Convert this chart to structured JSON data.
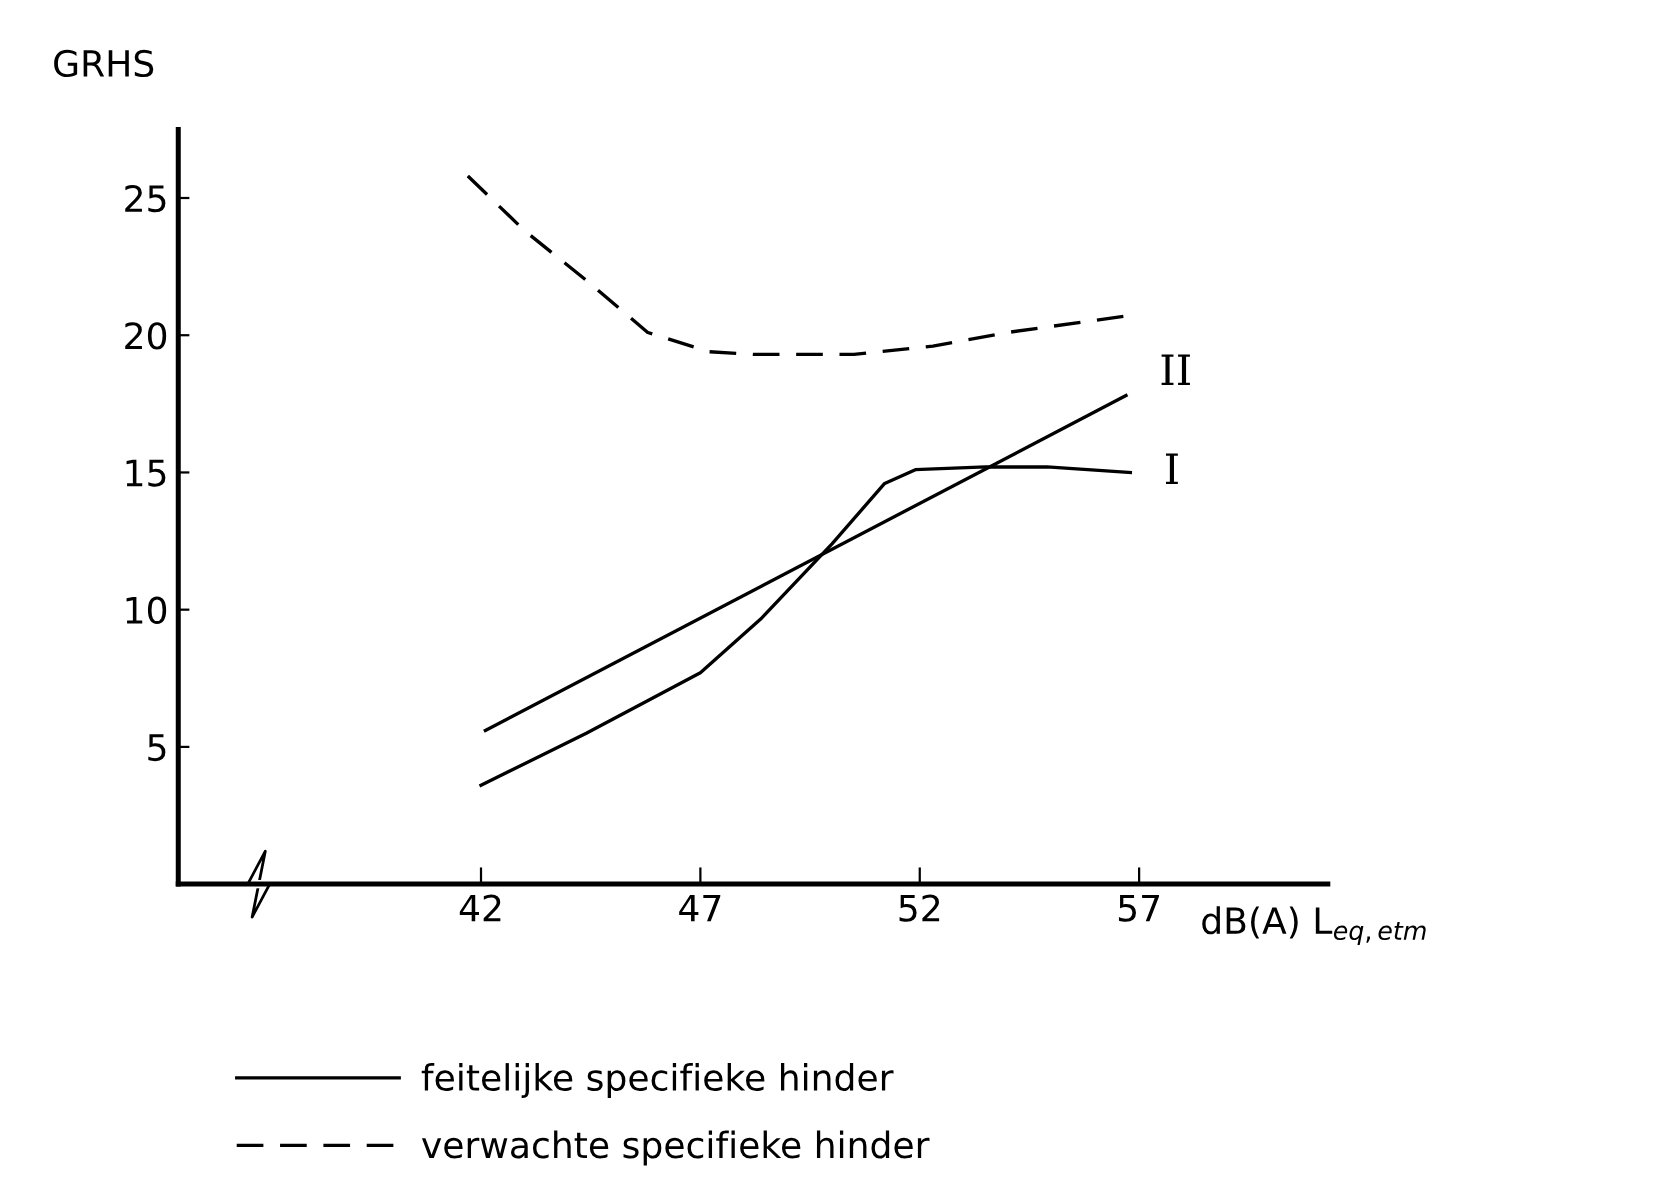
{
  "chart_data": {
    "type": "line",
    "ylabel": "GRHS",
    "xlabel": "dB(A) L$_{eq,etm}$",
    "xlim": [
      35.1,
      61.3
    ],
    "xticks": [
      42,
      47,
      52,
      57
    ],
    "ylim": [
      0,
      27.5
    ],
    "yticks": [
      5,
      10,
      15,
      20,
      25
    ],
    "grid": false,
    "legend": "bottom",
    "marker": "none",
    "series": [
      {
        "name": "feitelijke specifieke hinder",
        "color": "#000000",
        "line_style": "solid",
        "x": [
          42,
          44.4,
          47,
          48.4,
          50,
          51.2,
          51.9,
          53.5,
          54.9,
          56.8
        ],
        "values": [
          3.6,
          5.5,
          7.7,
          9.7,
          12.4,
          14.6,
          15.1,
          15.2,
          15.2,
          15.0
        ]
      },
      {
        "color": "#000000",
        "line_style": "solid",
        "x": [
          42.1,
          56.7
        ],
        "values": [
          5.6,
          17.8
        ]
      },
      {
        "name": "verwachte specifieke hinder",
        "color": "#000000",
        "line_style": "dashed",
        "x": [
          41.7,
          43.0,
          44.4,
          45.8,
          47.2,
          48.2,
          50.5,
          52.3,
          54.0,
          56.7
        ],
        "values": [
          25.8,
          23.8,
          22.0,
          20.1,
          19.4,
          19.3,
          19.3,
          19.6,
          20.1,
          20.7
        ]
      }
    ],
    "annotations": [
      {
        "text": "II",
        "x": 56.7,
        "y": 17.8
      },
      {
        "text": "I",
        "x": 56.8,
        "y": 15.0
      }
    ]
  }
}
